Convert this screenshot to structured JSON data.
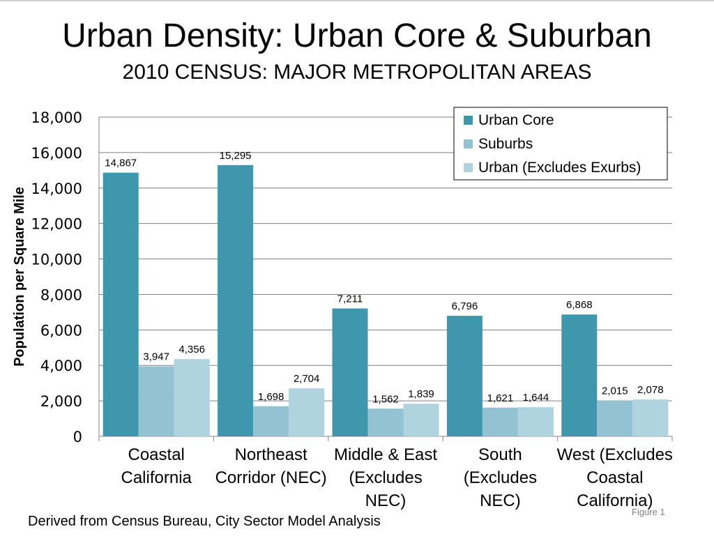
{
  "title": "Urban Density: Urban Core & Suburban",
  "subtitle": "2010 CENSUS: MAJOR METROPOLITAN AREAS",
  "footnote": "Derived from Census Bureau, City Sector Model Analysis",
  "figure_label": "Figure 1",
  "colors": {
    "urban_core": "#3f97ad",
    "suburbs": "#93c3d2",
    "urban_excludes_exurbs": "#afd3df",
    "gridline": "#7f7f7f"
  },
  "chart_data": {
    "type": "bar",
    "title": "Urban Density: Urban Core & Suburban",
    "subtitle": "2010 CENSUS: MAJOR METROPOLITAN AREAS",
    "xlabel": "",
    "ylabel": "Population per Square Mile",
    "ylim": [
      0,
      18000
    ],
    "yticks": [
      "0",
      "2,000",
      "4,000",
      "6,000",
      "8,000",
      "10,000",
      "12,000",
      "14,000",
      "16,000",
      "18,000"
    ],
    "grid": true,
    "legend_position": "top-right",
    "categories": [
      [
        "Coastal",
        "California"
      ],
      [
        "Northeast",
        "Corridor (NEC)"
      ],
      [
        "Middle & East",
        "(Excludes",
        "NEC)"
      ],
      [
        "South",
        "(Excludes",
        "NEC)"
      ],
      [
        "West (Excludes",
        "Coastal",
        "California)"
      ]
    ],
    "series": [
      {
        "name": "Urban Core",
        "color": "#3f97ad",
        "values": [
          14867,
          15295,
          7211,
          6796,
          6868
        ],
        "labels": [
          "14,867",
          "15,295",
          "7,211",
          "6,796",
          "6,868"
        ]
      },
      {
        "name": "Suburbs",
        "color": "#93c3d2",
        "values": [
          3947,
          1698,
          1562,
          1621,
          2015
        ],
        "labels": [
          "3,947",
          "1,698",
          "1,562",
          "1,621",
          "2,015"
        ]
      },
      {
        "name": "Urban (Excludes Exurbs)",
        "color": "#afd3df",
        "values": [
          4356,
          2704,
          1839,
          1644,
          2078
        ],
        "labels": [
          "4,356",
          "2,704",
          "1,839",
          "1,644",
          "2,078"
        ]
      }
    ]
  }
}
